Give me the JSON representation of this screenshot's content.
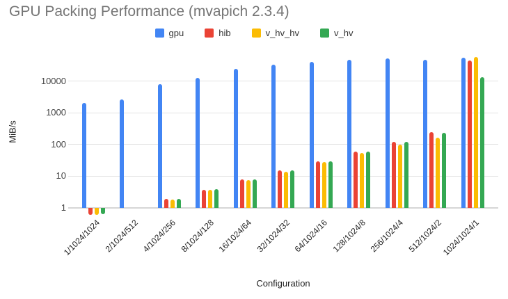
{
  "chart_data": {
    "type": "bar",
    "title": "GPU Packing Performance (mvapich 2.3.4)",
    "xlabel": "Configuration",
    "ylabel": "MiB/s",
    "y_scale": "log",
    "y_ticks": [
      1,
      10,
      100,
      1000,
      10000
    ],
    "ylim": [
      0.45,
      63000
    ],
    "grid": true,
    "legend_position": "top",
    "categories": [
      "1/1024/1024",
      "2/1024/512",
      "4/1024/256",
      "8/1024/128",
      "16/1024/64",
      "32/1024/32",
      "64/1024/16",
      "128/1024/8",
      "256/1024/4",
      "512/1024/2",
      "1024/1024/1"
    ],
    "series": [
      {
        "name": "gpu",
        "color": "#4285F4",
        "values": [
          2100,
          2700,
          8000,
          12500,
          24000,
          33000,
          41000,
          47000,
          51000,
          47000,
          54000
        ]
      },
      {
        "name": "hib",
        "color": "#EA4335",
        "values": [
          0.6,
          null,
          1.9,
          3.8,
          7.8,
          15,
          30,
          60,
          120,
          250,
          44000
        ]
      },
      {
        "name": "v_hv_hv",
        "color": "#FBBC04",
        "values": [
          0.6,
          null,
          1.85,
          3.7,
          7.5,
          14,
          28,
          53,
          100,
          168,
          56000
        ]
      },
      {
        "name": "v_hv",
        "color": "#34A853",
        "values": [
          0.62,
          null,
          1.95,
          3.9,
          8.0,
          15,
          30,
          60,
          120,
          230,
          13000
        ]
      }
    ]
  }
}
